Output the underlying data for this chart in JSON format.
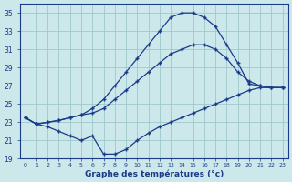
{
  "title": "Graphe des températures (°c)",
  "hours": [
    0,
    1,
    2,
    3,
    4,
    5,
    6,
    7,
    8,
    9,
    10,
    11,
    12,
    13,
    14,
    15,
    16,
    17,
    18,
    19,
    20,
    21,
    22,
    23
  ],
  "line1": [
    23.5,
    22.8,
    23.0,
    23.2,
    23.5,
    23.8,
    24.5,
    25.5,
    27.0,
    28.5,
    30.0,
    31.5,
    33.0,
    34.5,
    35.0,
    35.0,
    34.5,
    33.5,
    31.5,
    29.5,
    27.2,
    27.0,
    26.8,
    26.8
  ],
  "line2": [
    23.5,
    22.8,
    23.0,
    23.2,
    23.5,
    23.8,
    24.0,
    24.5,
    25.5,
    26.5,
    27.5,
    28.5,
    29.5,
    30.5,
    31.0,
    31.5,
    31.5,
    31.0,
    30.0,
    28.5,
    27.5,
    27.0,
    26.8,
    26.8
  ],
  "line3": [
    23.5,
    22.8,
    22.5,
    22.0,
    21.5,
    21.0,
    21.5,
    19.5,
    19.5,
    20.0,
    21.0,
    21.8,
    22.5,
    23.0,
    23.5,
    24.0,
    24.5,
    25.0,
    25.5,
    26.0,
    26.5,
    26.8,
    26.8,
    26.8
  ],
  "ylim": [
    19,
    36
  ],
  "yticks": [
    19,
    21,
    23,
    25,
    27,
    29,
    31,
    33,
    35
  ],
  "line_color": "#1a3a8a",
  "bg_color": "#cce8ea",
  "grid_color": "#9ec8cc",
  "marker": "+"
}
